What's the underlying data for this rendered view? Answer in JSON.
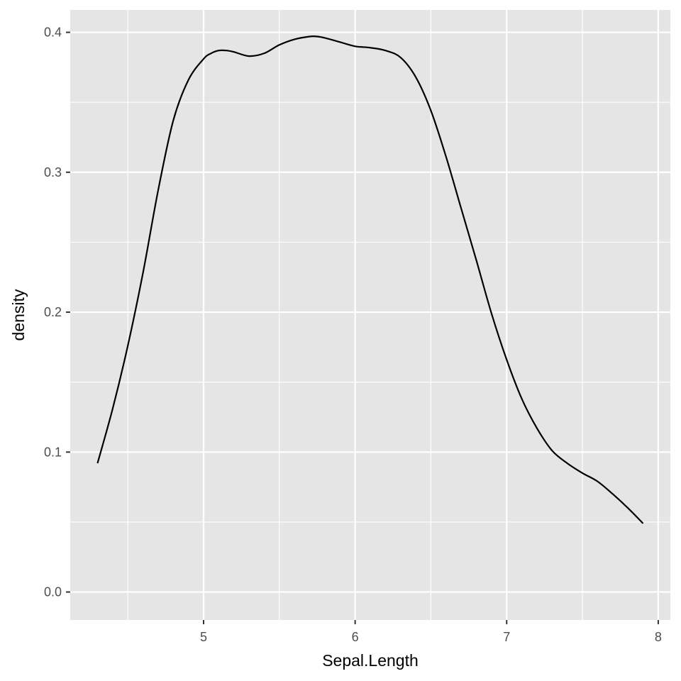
{
  "chart_data": {
    "type": "area",
    "title": "",
    "xlabel": "Sepal.Length",
    "ylabel": "density",
    "xlim": [
      4.12,
      8.08
    ],
    "ylim": [
      -0.02,
      0.416
    ],
    "x_ticks": [
      5,
      6,
      7,
      8
    ],
    "x_tick_labels": [
      "5",
      "6",
      "7",
      "8"
    ],
    "x_minor": [
      4.5,
      5.5,
      6.5,
      7.5
    ],
    "y_ticks": [
      0.0,
      0.1,
      0.2,
      0.3,
      0.4
    ],
    "y_tick_labels": [
      "0.0",
      "0.1",
      "0.2",
      "0.3",
      "0.4"
    ],
    "y_minor": [
      0.05,
      0.15,
      0.25,
      0.35
    ],
    "grid": true,
    "legend": "none",
    "colors": {
      "panel": "#e5e5e5",
      "grid": "#ffffff",
      "line": "#000000"
    },
    "series": [
      {
        "x": [
          4.3,
          4.4,
          4.5,
          4.6,
          4.7,
          4.8,
          4.9,
          5.0,
          5.05,
          5.1,
          5.15,
          5.2,
          5.3,
          5.4,
          5.5,
          5.6,
          5.7,
          5.75,
          5.8,
          5.9,
          6.0,
          6.1,
          6.2,
          6.3,
          6.4,
          6.5,
          6.6,
          6.7,
          6.8,
          6.9,
          7.0,
          7.1,
          7.2,
          7.3,
          7.4,
          7.5,
          7.6,
          7.7,
          7.8,
          7.9
        ],
        "y": [
          0.092,
          0.131,
          0.176,
          0.228,
          0.287,
          0.337,
          0.366,
          0.381,
          0.385,
          0.387,
          0.387,
          0.386,
          0.383,
          0.385,
          0.391,
          0.395,
          0.397,
          0.397,
          0.396,
          0.393,
          0.39,
          0.389,
          0.387,
          0.382,
          0.368,
          0.344,
          0.311,
          0.274,
          0.237,
          0.199,
          0.166,
          0.138,
          0.117,
          0.101,
          0.092,
          0.085,
          0.079,
          0.07,
          0.06,
          0.049
        ]
      }
    ]
  }
}
